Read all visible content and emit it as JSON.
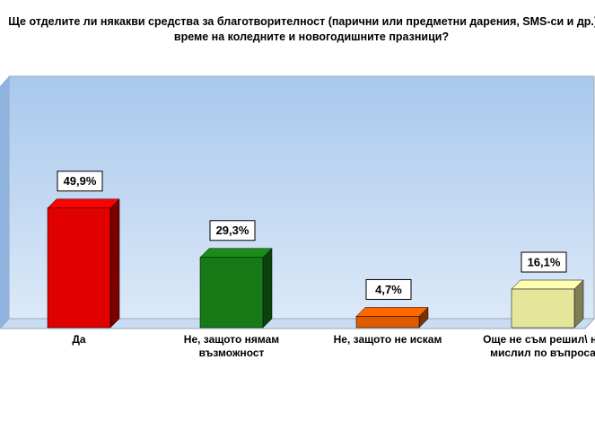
{
  "chart_data": {
    "type": "bar3d",
    "title": "Ще отделите ли някакви средства за благотворителност (парични или предметни дарения, SMS-си и др.) по време на коледните и новогодишните празници?",
    "categories": [
      "Да",
      "Не, защото нямам възможност",
      "Не, защото не искам",
      "Още не съм решил\\ не мислил по въпроса"
    ],
    "values": [
      49.9,
      29.3,
      4.7,
      16.1
    ],
    "value_labels": [
      "49,9%",
      "29,3%",
      "4,7%",
      "16,1%"
    ],
    "colors": [
      "#e00000",
      "#167a16",
      "#e05a00",
      "#e6e69a"
    ]
  }
}
